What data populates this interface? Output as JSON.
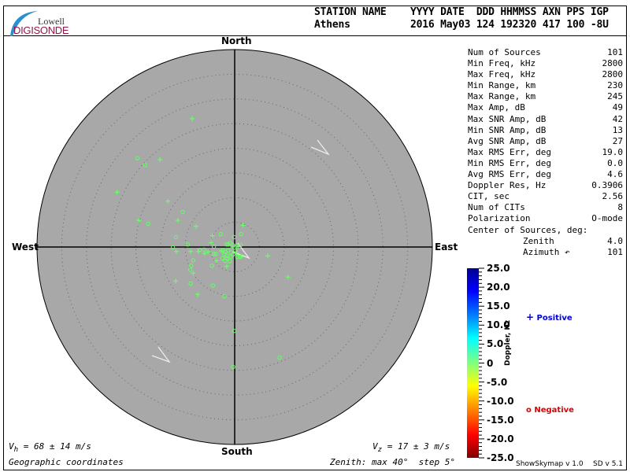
{
  "logo": {
    "line1": "Lowell",
    "line2": "DIGISONDE",
    "colors": {
      "arc": "#2a8fd0",
      "text": "#8b1a4a"
    }
  },
  "header": {
    "labels": "STATION NAME    YYYY DATE  DDD HHMMSS AXN PPS IGP",
    "values": "Athens          2016 May03 124 192320 417 100 -8U"
  },
  "compass": {
    "north": "North",
    "south": "South",
    "east": "East",
    "west": "West"
  },
  "stats": [
    {
      "label": "Num of Sources",
      "value": "101"
    },
    {
      "label": "Min Freq, kHz",
      "value": "2800"
    },
    {
      "label": "Max Freq, kHz",
      "value": "2800"
    },
    {
      "label": "Min Range, km",
      "value": "230"
    },
    {
      "label": "Max Range, km",
      "value": "245"
    },
    {
      "label": "Max Amp, dB",
      "value": "49"
    },
    {
      "label": "Max SNR Amp, dB",
      "value": "42"
    },
    {
      "label": "Min SNR Amp, dB",
      "value": "13"
    },
    {
      "label": "Avg SNR Amp, dB",
      "value": "27"
    },
    {
      "label": "Max RMS Err, deg",
      "value": "19.0"
    },
    {
      "label": "Min RMS Err, deg",
      "value": "0.0"
    },
    {
      "label": "Avg RMS Err, deg",
      "value": "4.6"
    },
    {
      "label": "Doppler Res, Hz",
      "value": "0.3906"
    },
    {
      "label": "CIT, sec",
      "value": "2.56"
    },
    {
      "label": "Num of CITs",
      "value": "8"
    },
    {
      "label": "Polarization",
      "value": "O-mode"
    }
  ],
  "center": {
    "title": "Center of Sources, deg:",
    "zenith_label": "Zenith",
    "zenith": "4.0",
    "azimuth_label": "Azimuth ↶",
    "azimuth": "101"
  },
  "colorbar": {
    "label": "Doppler, Hz",
    "ticks": [
      "25.0",
      "20.0",
      "15.0",
      "10.0",
      "5.0",
      "0",
      "-5.0",
      "-10.0",
      "-15.0",
      "-20.0",
      "-25.0"
    ],
    "range": [
      -25,
      25
    ]
  },
  "legend": {
    "positive": "Positive",
    "negative": "Negative",
    "positive_symbol": "+",
    "negative_symbol": "o",
    "positive_color": "#0000dd",
    "negative_color": "#dd0000"
  },
  "footer": {
    "vh_symbol": "V",
    "vh_sub": "h",
    "vh_value": " = 68 ± 14 m/s",
    "vz_symbol": "V",
    "vz_sub": "z",
    "vz_value": " = 17 ± 3 m/s",
    "coords": "Geographic coordinates",
    "zenith": "Zenith: max 40°  step 5°",
    "version1": "ShowSkymap v 1.0",
    "version2": "SD v 5.1"
  },
  "chart_data": {
    "type": "scatter",
    "projection": "polar skymap",
    "zenith_max_deg": 40,
    "zenith_step_deg": 5,
    "background": "#a8a8a8",
    "point_color": "#66ff66",
    "points_note_units": "east/north zenith-angle components, deg",
    "points": [
      {
        "s": "+",
        "e": -8.6,
        "n": 26.0
      },
      {
        "s": "o",
        "e": -19.7,
        "n": 18.0
      },
      {
        "s": "o",
        "e": -18.1,
        "n": 16.6
      },
      {
        "s": "+",
        "e": -15.1,
        "n": 17.7
      },
      {
        "s": "+",
        "e": -23.8,
        "n": 11.1
      },
      {
        "s": "+",
        "e": -13.5,
        "n": 9.3
      },
      {
        "s": "o",
        "e": -10.5,
        "n": 7.1
      },
      {
        "s": "+",
        "e": -19.4,
        "n": 5.4
      },
      {
        "s": "o",
        "e": -17.5,
        "n": 4.7
      },
      {
        "s": "+",
        "e": -11.5,
        "n": 5.4
      },
      {
        "s": "+",
        "e": -7.8,
        "n": 4.2
      },
      {
        "s": "+",
        "e": 1.7,
        "n": 4.4
      },
      {
        "s": "o",
        "e": 1.3,
        "n": 2.6
      },
      {
        "s": "o",
        "e": -2.8,
        "n": 2.6
      },
      {
        "s": "o",
        "e": -0.1,
        "n": 2.0
      },
      {
        "s": "o",
        "e": -11.9,
        "n": 2.0
      },
      {
        "s": "+",
        "e": -4.5,
        "n": 2.3
      },
      {
        "s": "+",
        "e": -4.8,
        "n": 0.9
      },
      {
        "s": "o",
        "e": -9.5,
        "n": 0.5
      },
      {
        "s": "o",
        "e": -12.5,
        "n": -0.1
      },
      {
        "s": "+",
        "e": -11.8,
        "n": -0.9
      },
      {
        "s": "+",
        "e": -8.9,
        "n": -0.9
      },
      {
        "s": "+",
        "e": -7.3,
        "n": -0.9
      },
      {
        "s": "o",
        "e": -7.1,
        "n": -0.6
      },
      {
        "s": "o",
        "e": -6.2,
        "n": -0.5
      },
      {
        "s": "+",
        "e": -6.1,
        "n": -1.3
      },
      {
        "s": "+",
        "e": -5.4,
        "n": -1.0
      },
      {
        "s": "o",
        "e": -4.2,
        "n": 0.1
      },
      {
        "s": "o",
        "e": -4.2,
        "n": -1.4
      },
      {
        "s": "o",
        "e": -3.8,
        "n": -1.4
      },
      {
        "s": "+",
        "e": -3.7,
        "n": -2.8
      },
      {
        "s": "o",
        "e": -8.4,
        "n": -2.7
      },
      {
        "s": "o",
        "e": -8.8,
        "n": -3.8
      },
      {
        "s": "o",
        "e": -9.0,
        "n": -4.6
      },
      {
        "s": "+",
        "e": -8.4,
        "n": -5.3
      },
      {
        "s": "o",
        "e": -4.6,
        "n": -3.8
      },
      {
        "s": "+",
        "e": -11.9,
        "n": -6.9
      },
      {
        "s": "o",
        "e": -8.9,
        "n": -7.4
      },
      {
        "s": "o",
        "e": -4.4,
        "n": -7.8
      },
      {
        "s": "+",
        "e": -7.5,
        "n": -9.6
      },
      {
        "s": "o",
        "e": -2.1,
        "n": -10.0
      },
      {
        "s": "+",
        "e": -1.6,
        "n": -3.9
      },
      {
        "s": "+",
        "e": 6.7,
        "n": -1.8
      },
      {
        "s": "+",
        "e": 10.8,
        "n": -6.1
      },
      {
        "s": "o",
        "e": -0.1,
        "n": -17.0
      },
      {
        "s": "o",
        "e": 9.1,
        "n": -22.4
      },
      {
        "s": "o",
        "e": -0.3,
        "n": -24.3
      },
      {
        "s": "o",
        "e": -1.3,
        "n": 0.5
      },
      {
        "s": "o",
        "e": -1.6,
        "n": 0.5
      },
      {
        "s": "o",
        "e": -0.9,
        "n": 0.8
      },
      {
        "s": "o",
        "e": -0.4,
        "n": 0.4
      },
      {
        "s": "o",
        "e": 0.4,
        "n": 0.3
      },
      {
        "s": "o",
        "e": 1.2,
        "n": 0.4
      },
      {
        "s": "+",
        "e": 0.8,
        "n": 0.1
      },
      {
        "s": "o",
        "e": -2.4,
        "n": -0.7
      },
      {
        "s": "o",
        "e": -1.9,
        "n": -1.0
      },
      {
        "s": "o",
        "e": -1.3,
        "n": -0.7
      },
      {
        "s": "o",
        "e": -0.8,
        "n": -1.1
      },
      {
        "s": "o",
        "e": -2.1,
        "n": -1.5
      },
      {
        "s": "o",
        "e": -1.5,
        "n": -1.8
      },
      {
        "s": "o",
        "e": -0.8,
        "n": -2.0
      },
      {
        "s": "o",
        "e": -2.5,
        "n": -2.3
      },
      {
        "s": "o",
        "e": -1.9,
        "n": -2.8
      },
      {
        "s": "o",
        "e": -1.0,
        "n": -2.9
      },
      {
        "s": "o",
        "e": 0.2,
        "n": -0.7
      },
      {
        "s": "o",
        "e": 0.5,
        "n": -2.0
      },
      {
        "s": "o",
        "e": 1.1,
        "n": -2.0
      },
      {
        "s": "+",
        "e": 1.3,
        "n": -2.0
      },
      {
        "s": "+",
        "e": -2.7,
        "n": -0.8
      },
      {
        "s": "+",
        "e": -0.4,
        "n": 0.0
      },
      {
        "s": "o",
        "e": -1.6,
        "n": -2.3
      },
      {
        "s": "+",
        "e": 0.3,
        "n": -1.2
      },
      {
        "s": "o",
        "e": -0.3,
        "n": -1.5
      }
    ]
  }
}
